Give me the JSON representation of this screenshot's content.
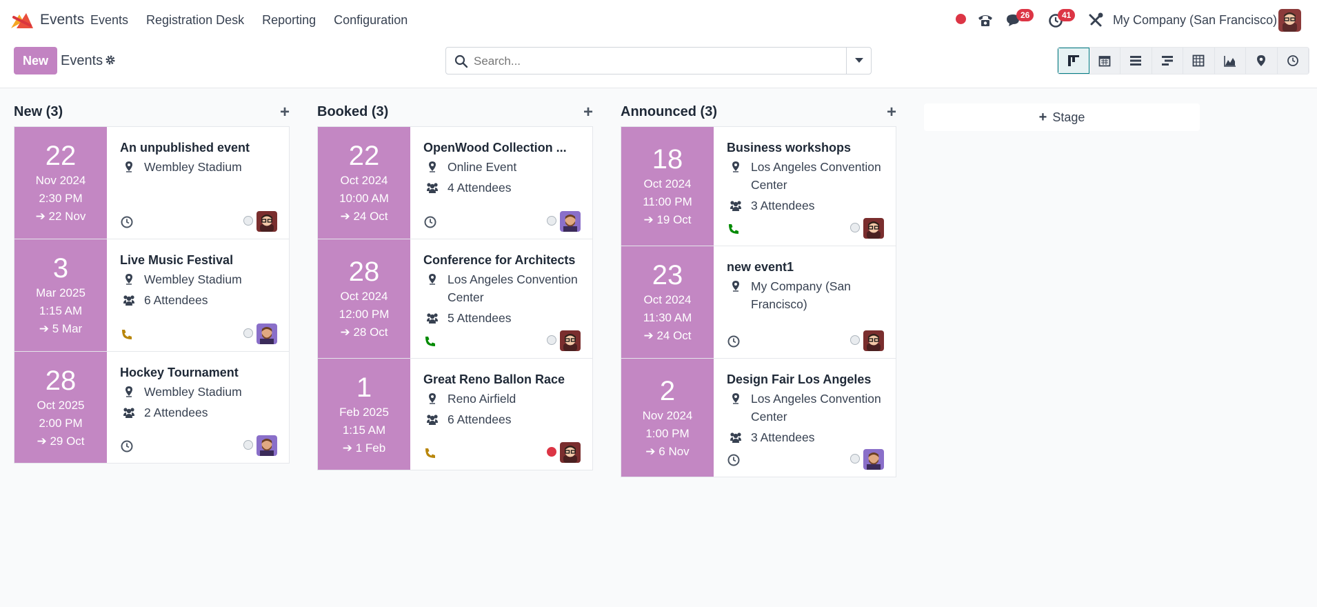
{
  "nav": {
    "app_name": "Events",
    "menu": [
      "Events",
      "Registration Desk",
      "Reporting",
      "Configuration"
    ],
    "messages_badge": "26",
    "activities_badge": "41",
    "company": "My Company (San Francisco)"
  },
  "control": {
    "new_label": "New",
    "breadcrumb": "Events",
    "search_placeholder": "Search..."
  },
  "views": [
    "kanban-icon",
    "calendar-icon",
    "list-icon",
    "gantt-icon",
    "pivot-icon",
    "graph-icon",
    "map-icon",
    "activity-icon"
  ],
  "stage_button": "Stage",
  "colors": {
    "accent": "#c283c2",
    "date_panel": "#c387c3",
    "red": "#dc3545",
    "green": "#008a00",
    "orange": "#b8860b"
  },
  "columns": [
    {
      "title": "New (3)",
      "cards": [
        {
          "day": "22",
          "month": "Nov 2024",
          "time": "2:30 PM",
          "end": "22 Nov",
          "title": "An unpublished event",
          "location": "Wembley Stadium",
          "attendees": "",
          "activity": "clock-icon",
          "state": "grey",
          "avatar": "glasses"
        },
        {
          "day": "3",
          "month": "Mar 2025",
          "time": "1:15 AM",
          "end": "5 Mar",
          "title": "Live Music Festival",
          "location": "Wembley Stadium",
          "attendees": "6 Attendees",
          "activity": "phone-icon-orange",
          "state": "grey",
          "avatar": "beard"
        },
        {
          "day": "28",
          "month": "Oct 2025",
          "time": "2:00 PM",
          "end": "29 Oct",
          "title": "Hockey Tournament",
          "location": "Wembley Stadium",
          "attendees": "2 Attendees",
          "activity": "clock-icon",
          "state": "grey",
          "avatar": "beard"
        }
      ]
    },
    {
      "title": "Booked (3)",
      "cards": [
        {
          "day": "22",
          "month": "Oct 2024",
          "time": "10:00 AM",
          "end": "24 Oct",
          "title": "OpenWood Collection ...",
          "location": "Online Event",
          "attendees": "4 Attendees",
          "activity": "clock-icon",
          "state": "grey",
          "avatar": "beard"
        },
        {
          "day": "28",
          "month": "Oct 2024",
          "time": "12:00 PM",
          "end": "28 Oct",
          "title": "Conference for Architects",
          "location": "Los Angeles Convention Center",
          "attendees": "5 Attendees",
          "activity": "phone-icon-green",
          "state": "grey",
          "avatar": "glasses"
        },
        {
          "day": "1",
          "month": "Feb 2025",
          "time": "1:15 AM",
          "end": "1 Feb",
          "title": "Great Reno Ballon Race",
          "location": "Reno Airfield",
          "attendees": "6 Attendees",
          "activity": "phone-icon-orange",
          "state": "red",
          "avatar": "glasses"
        }
      ]
    },
    {
      "title": "Announced (3)",
      "cards": [
        {
          "day": "18",
          "month": "Oct 2024",
          "time": "11:00 PM",
          "end": "19 Oct",
          "title": "Business workshops",
          "location": "Los Angeles Convention Center",
          "attendees": "3 Attendees",
          "activity": "phone-icon-green",
          "state": "grey",
          "avatar": "glasses"
        },
        {
          "day": "23",
          "month": "Oct 2024",
          "time": "11:30 AM",
          "end": "24 Oct",
          "title": "new event1",
          "location": "My Company (San Francisco)",
          "attendees": "",
          "activity": "clock-icon",
          "state": "grey",
          "avatar": "glasses"
        },
        {
          "day": "2",
          "month": "Nov 2024",
          "time": "1:00 PM",
          "end": "6 Nov",
          "title": "Design Fair Los Angeles",
          "location": "Los Angeles Convention Center",
          "attendees": "3 Attendees",
          "activity": "clock-icon",
          "state": "grey",
          "avatar": "beard"
        }
      ]
    }
  ]
}
